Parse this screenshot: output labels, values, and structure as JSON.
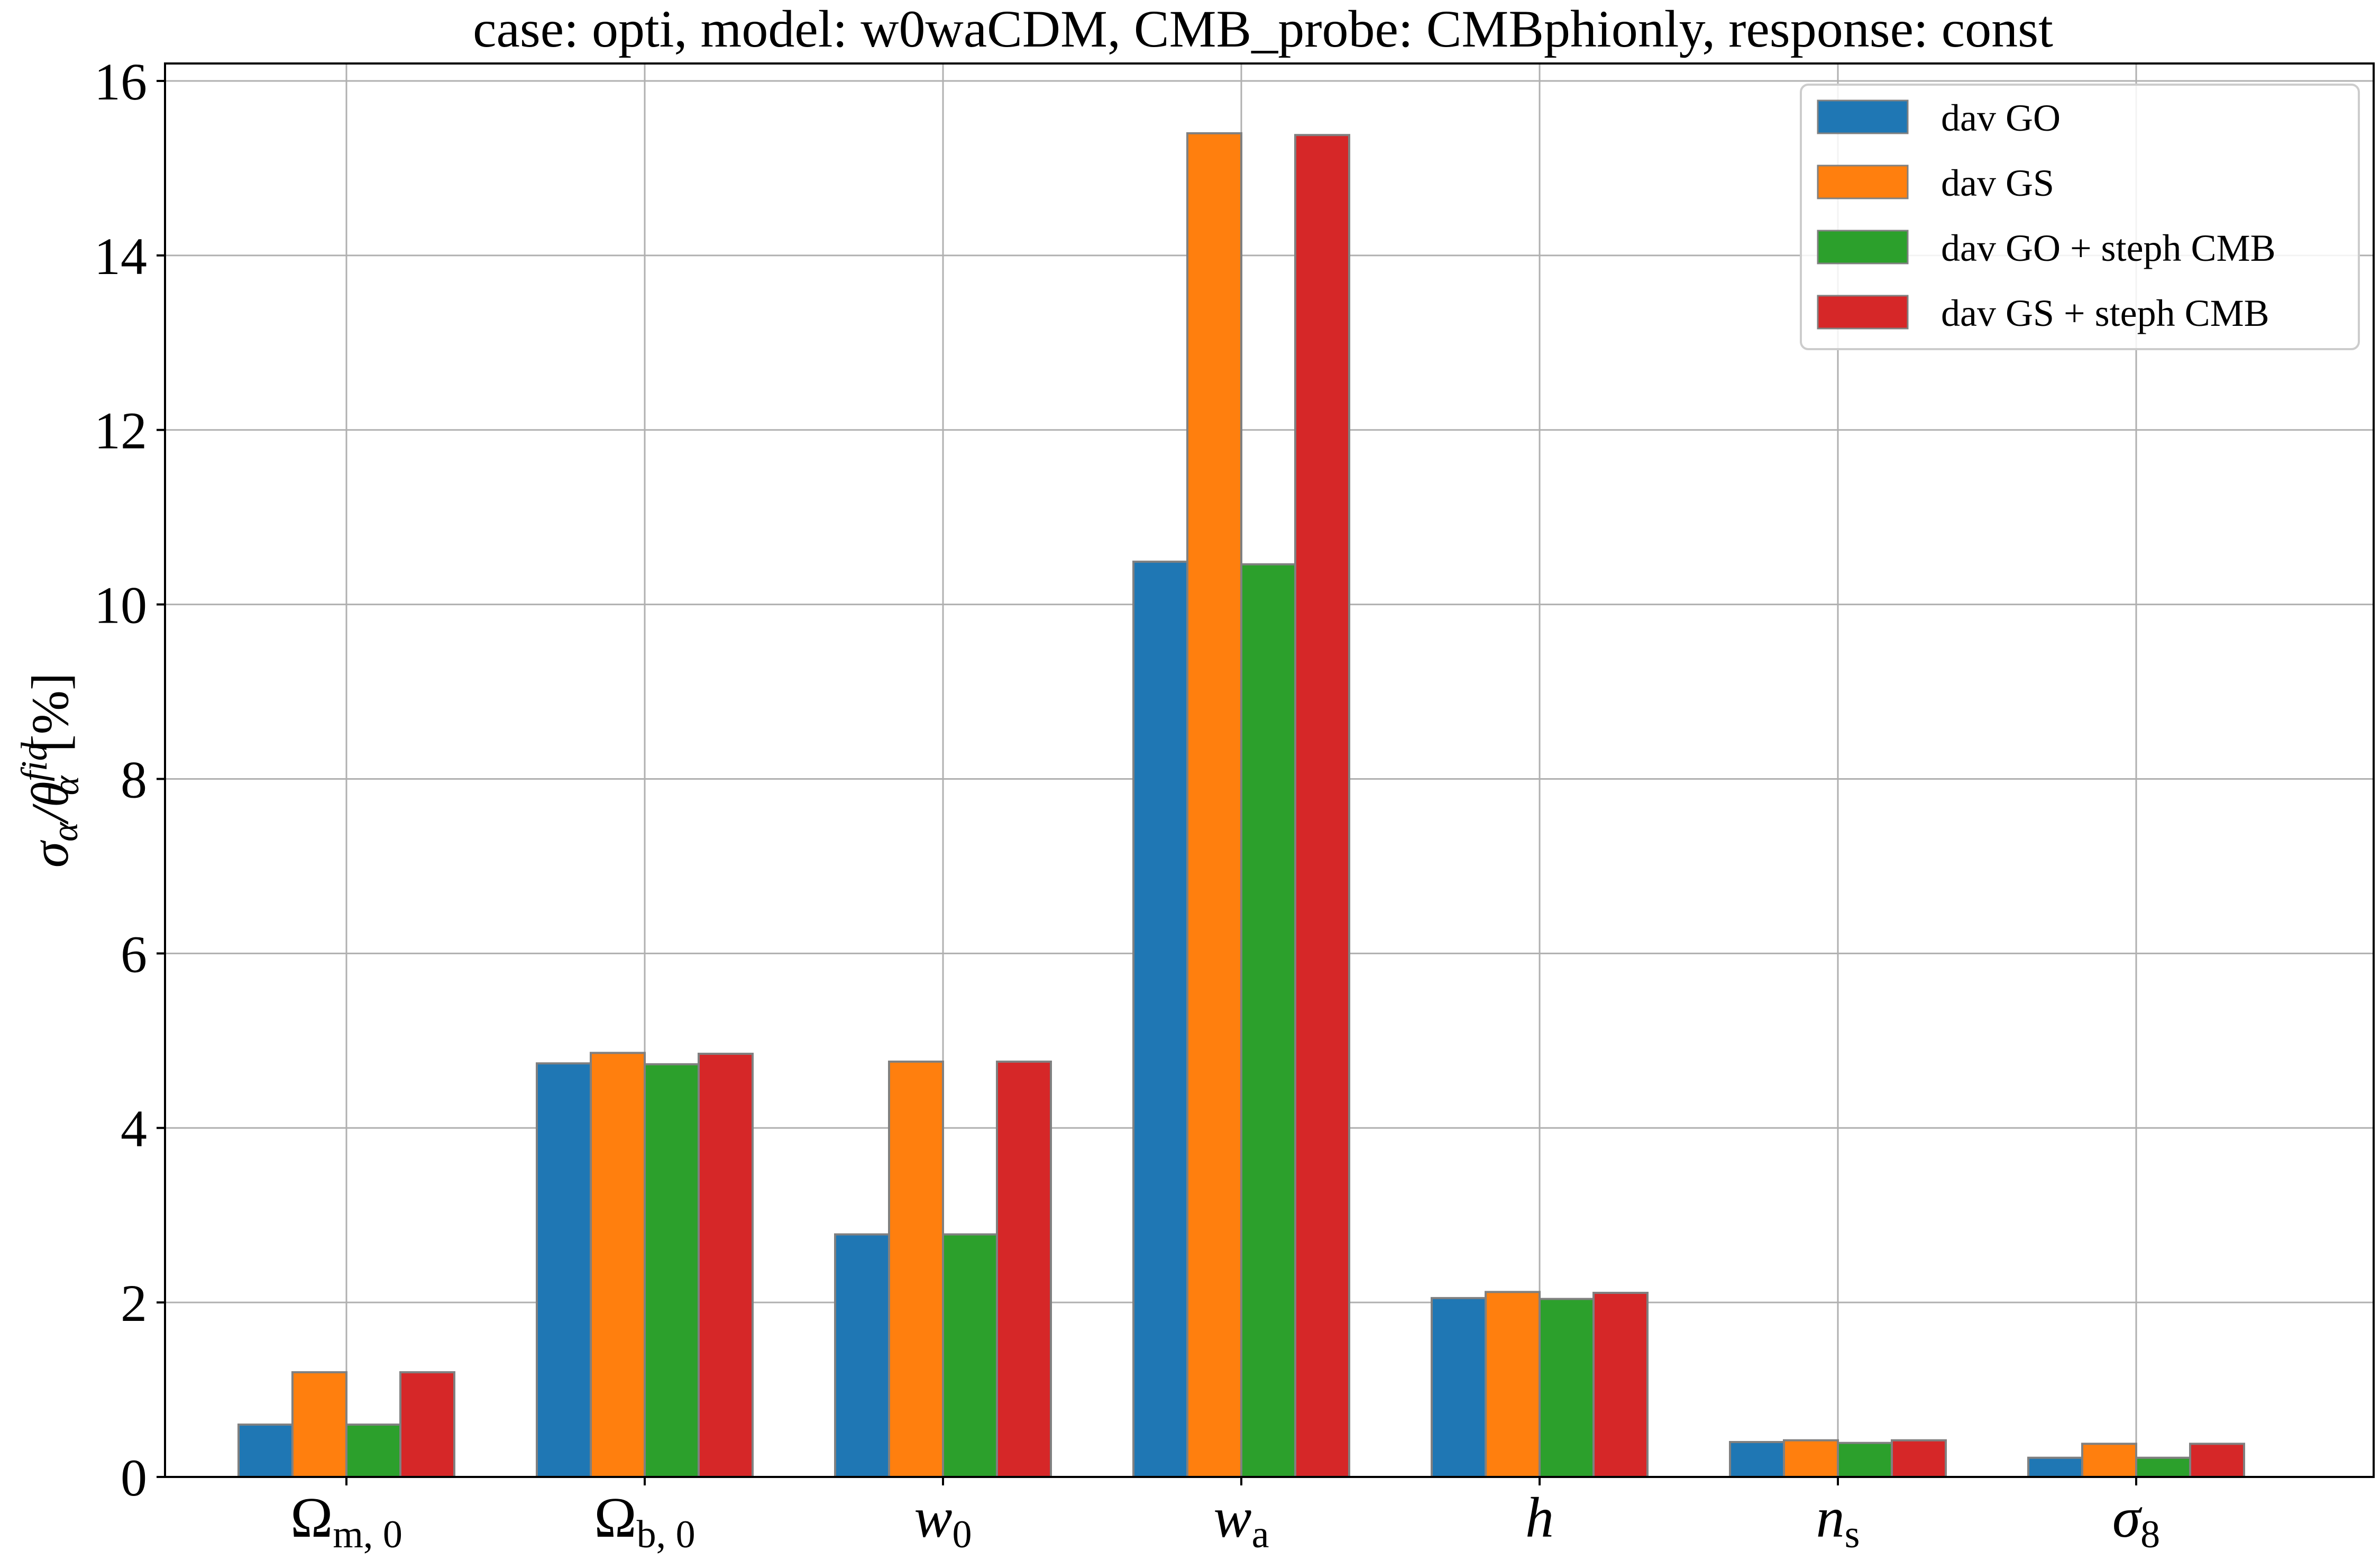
{
  "chart_data": {
    "type": "bar",
    "title": "case: opti, model: w0waCDM, CMB_probe: CMBphionly, response: const",
    "ylabel": {
      "base": "σ",
      "sub1": "α",
      "slash": "/θ",
      "sup": "fid",
      "sub2": "α",
      "unit": " [%]"
    },
    "xlabel": "",
    "ylim": [
      0,
      16.2
    ],
    "yticks": [
      0,
      2,
      4,
      6,
      8,
      10,
      12,
      14,
      16
    ],
    "grid": true,
    "legend_position": "top-right",
    "categories": [
      {
        "base": "Ω",
        "sub": "m, 0",
        "italic": false
      },
      {
        "base": "Ω",
        "sub": "b, 0",
        "italic": false
      },
      {
        "base": "w",
        "sub": "0",
        "italic": true
      },
      {
        "base": "w",
        "sub": "a",
        "italic": true
      },
      {
        "base": "h",
        "sub": "",
        "italic": true
      },
      {
        "base": "n",
        "sub": "s",
        "italic": true
      },
      {
        "base": "σ",
        "sub": "8",
        "italic": true
      }
    ],
    "series": [
      {
        "name": "dav GO",
        "color": "#1f77b4",
        "values": [
          0.6,
          4.74,
          2.78,
          10.49,
          2.05,
          0.4,
          0.22
        ]
      },
      {
        "name": "dav GS",
        "color": "#ff7f0e",
        "values": [
          1.2,
          4.86,
          4.76,
          15.4,
          2.12,
          0.42,
          0.38
        ]
      },
      {
        "name": "dav GO + steph CMB",
        "color": "#2ca02c",
        "values": [
          0.6,
          4.73,
          2.78,
          10.46,
          2.04,
          0.39,
          0.22
        ]
      },
      {
        "name": "dav GS + steph CMB",
        "color": "#d62728",
        "values": [
          1.2,
          4.85,
          4.76,
          15.38,
          2.11,
          0.42,
          0.38
        ]
      }
    ]
  }
}
